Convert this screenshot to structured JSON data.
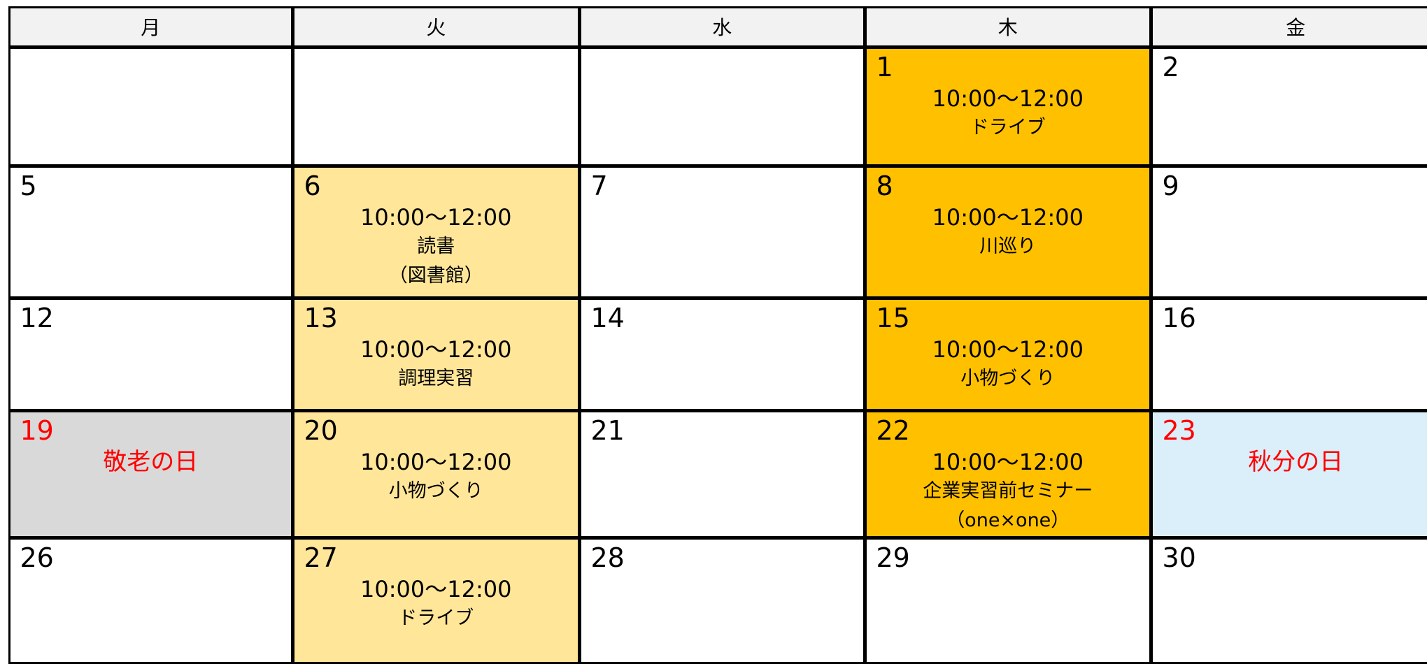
{
  "header": {
    "days": [
      "月",
      "火",
      "水",
      "木",
      "金"
    ]
  },
  "weeks": [
    [
      null,
      null,
      null,
      {
        "day": "1",
        "lines": [
          "10:00～12:00",
          "ドライブ"
        ]
      },
      {
        "day": "2"
      }
    ],
    [
      {
        "day": "5"
      },
      {
        "day": "6",
        "lines": [
          "10:00～12:00",
          "読書",
          "（図書館）"
        ]
      },
      {
        "day": "7"
      },
      {
        "day": "8",
        "lines": [
          "10:00～12:00",
          "川巡り"
        ]
      },
      {
        "day": "9"
      }
    ],
    [
      {
        "day": "12"
      },
      {
        "day": "13",
        "lines": [
          "10:00～12:00",
          "調理実習"
        ]
      },
      {
        "day": "14"
      },
      {
        "day": "15",
        "lines": [
          "10:00～12:00",
          "小物づくり"
        ]
      },
      {
        "day": "16"
      }
    ],
    [
      {
        "day": "19",
        "lines": [
          "敬老の日"
        ]
      },
      {
        "day": "20",
        "lines": [
          "10:00～12:00",
          "小物づくり"
        ]
      },
      {
        "day": "21"
      },
      {
        "day": "22",
        "lines": [
          "10:00～12:00",
          "企業実習前セミナー",
          "（one×one）"
        ]
      },
      {
        "day": "23",
        "lines": [
          "秋分の日"
        ]
      }
    ],
    [
      {
        "day": "26"
      },
      {
        "day": "27",
        "lines": [
          "10:00～12:00",
          "ドライブ"
        ]
      },
      {
        "day": "28"
      },
      {
        "day": "29"
      },
      {
        "day": "30"
      }
    ]
  ]
}
